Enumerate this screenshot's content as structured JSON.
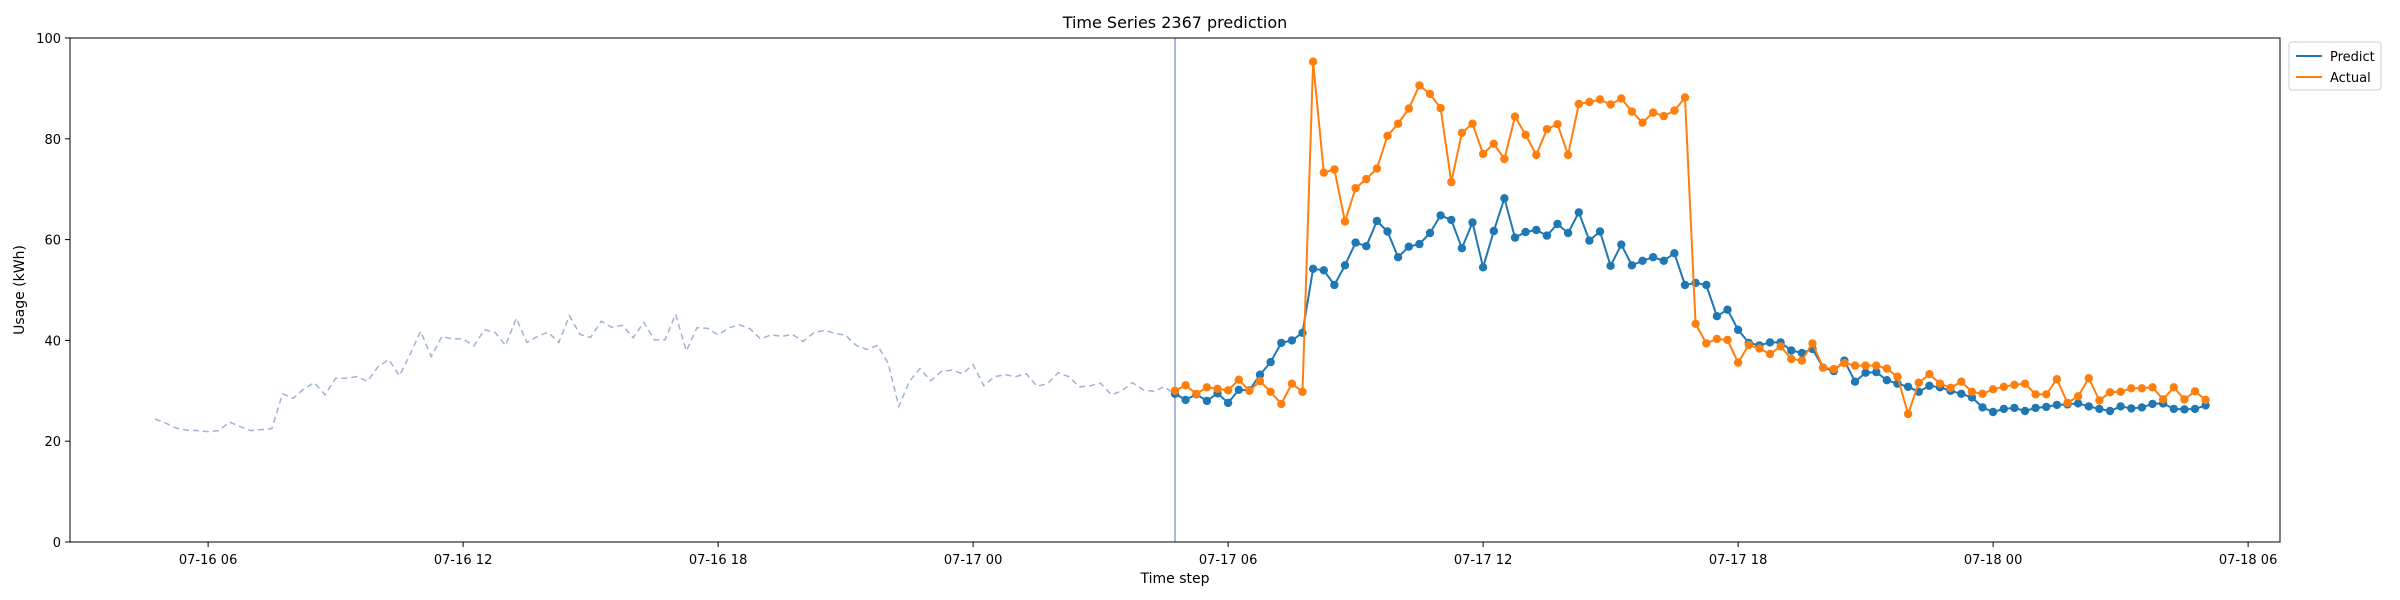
{
  "chart_data": {
    "type": "line",
    "title": "Time Series 2367 prediction",
    "xlabel": "Time step",
    "ylabel": "Usage (kWh)",
    "ylim": [
      0,
      100
    ],
    "xlim": [
      "2024-07-16 02:45",
      "2024-07-18 06:45"
    ],
    "x_ticks": [
      {
        "t": "2024-07-16 06:00",
        "label": "07-16 06"
      },
      {
        "t": "2024-07-16 12:00",
        "label": "07-16 12"
      },
      {
        "t": "2024-07-16 18:00",
        "label": "07-16 18"
      },
      {
        "t": "2024-07-17 00:00",
        "label": "07-17 00"
      },
      {
        "t": "2024-07-17 06:00",
        "label": "07-17 06"
      },
      {
        "t": "2024-07-17 12:00",
        "label": "07-17 12"
      },
      {
        "t": "2024-07-17 18:00",
        "label": "07-17 18"
      },
      {
        "t": "2024-07-18 00:00",
        "label": "07-18 00"
      },
      {
        "t": "2024-07-18 06:00",
        "label": "07-18 06"
      }
    ],
    "y_ticks": [
      0,
      20,
      40,
      60,
      80,
      100
    ],
    "grid": false,
    "legend_position": "outside top-right",
    "split_time": "2024-07-17 04:45",
    "history": {
      "start": "2024-07-16 04:45",
      "step_minutes": 15,
      "color": "#9fb3d6",
      "values": [
        24.4,
        23.6,
        22.6,
        22.2,
        22.1,
        21.9,
        22.1,
        23.8,
        22.9,
        22.1,
        22.3,
        22.5,
        29.4,
        28.5,
        30.4,
        31.6,
        29.2,
        32.5,
        32.5,
        32.8,
        31.9,
        34.8,
        36.2,
        33.0,
        37.2,
        41.8,
        36.8,
        40.8,
        40.3,
        40.3,
        38.9,
        42.1,
        41.6,
        39.0,
        44.4,
        39.6,
        40.8,
        41.6,
        39.6,
        44.9,
        41.2,
        40.6,
        43.8,
        42.6,
        43.0,
        40.5,
        43.6,
        40.1,
        40.1,
        45.2,
        37.9,
        42.5,
        42.4,
        41.1,
        42.5,
        43.1,
        42.3,
        40.3,
        41.1,
        40.8,
        41.2,
        39.8,
        41.5,
        42.0,
        41.4,
        41.0,
        39.0,
        38.2,
        39.0,
        35.5,
        26.9,
        31.9,
        34.4,
        32.0,
        33.8,
        34.1,
        33.4,
        35.2,
        31.0,
        32.8,
        33.2,
        32.8,
        33.4,
        30.9,
        31.4,
        33.6,
        32.8,
        30.8,
        31.0,
        31.5,
        29.2,
        30.0,
        31.6,
        30.2,
        29.9,
        30.8,
        29.3,
        28.8
      ]
    },
    "series": [
      {
        "name": "Predict",
        "color": "#1f77b4",
        "start": "2024-07-17 04:45",
        "step_minutes": 15,
        "values": [
          29.4,
          28.2,
          29.3,
          28.0,
          29.5,
          27.6,
          30.2,
          30.1,
          33.2,
          35.7,
          39.5,
          40.0,
          41.5,
          54.2,
          53.9,
          51.0,
          54.9,
          59.4,
          58.7,
          63.7,
          61.6,
          56.5,
          58.6,
          59.1,
          61.3,
          64.8,
          63.9,
          58.3,
          63.4,
          54.5,
          61.7,
          68.2,
          60.4,
          61.5,
          61.9,
          60.8,
          63.1,
          61.3,
          65.4,
          59.8,
          61.6,
          54.8,
          59.0,
          54.9,
          55.8,
          56.5,
          55.8,
          57.3,
          51.0,
          51.4,
          51.0,
          44.8,
          46.1,
          42.1,
          39.5,
          39.0,
          39.6,
          39.6,
          38.0,
          37.5,
          38.3,
          34.6,
          33.9,
          36.0,
          31.8,
          33.6,
          33.7,
          32.1,
          31.4,
          30.8,
          29.8,
          31.0,
          30.7,
          30.0,
          29.4,
          28.7,
          26.7,
          25.8,
          26.4,
          26.6,
          26.0,
          26.6,
          26.8,
          27.2,
          27.3,
          27.5,
          26.9,
          26.4,
          26.0,
          26.9,
          26.5,
          26.7,
          27.4,
          27.5,
          26.4,
          26.3,
          26.4,
          27.1
        ]
      },
      {
        "name": "Actual",
        "color": "#ff7f0e",
        "start": "2024-07-17 04:45",
        "step_minutes": 15,
        "values": [
          30.0,
          31.1,
          29.4,
          30.7,
          30.4,
          30.1,
          32.2,
          30.0,
          31.9,
          29.8,
          27.4,
          31.4,
          29.8,
          95.3,
          73.3,
          73.9,
          63.6,
          70.2,
          72.0,
          74.1,
          80.6,
          83.0,
          86.0,
          90.6,
          88.9,
          86.1,
          71.4,
          81.2,
          83.0,
          77.0,
          79.0,
          76.0,
          84.4,
          80.8,
          76.8,
          81.9,
          82.9,
          76.8,
          86.9,
          87.3,
          87.8,
          86.8,
          88.0,
          85.4,
          83.2,
          85.2,
          84.5,
          85.6,
          88.2,
          43.3,
          39.4,
          40.3,
          40.1,
          35.6,
          39.1,
          38.4,
          37.3,
          38.8,
          36.3,
          36.0,
          39.4,
          34.6,
          34.3,
          35.5,
          35.0,
          35.0,
          35.0,
          34.4,
          32.8,
          25.4,
          31.6,
          33.3,
          31.4,
          30.6,
          31.8,
          29.8,
          29.4,
          30.3,
          30.8,
          31.2,
          31.4,
          29.3,
          29.3,
          32.3,
          27.6,
          28.9,
          32.5,
          28.1,
          29.7,
          29.8,
          30.5,
          30.5,
          30.7,
          28.3,
          30.7,
          28.3,
          29.9,
          28.2
        ]
      }
    ]
  }
}
